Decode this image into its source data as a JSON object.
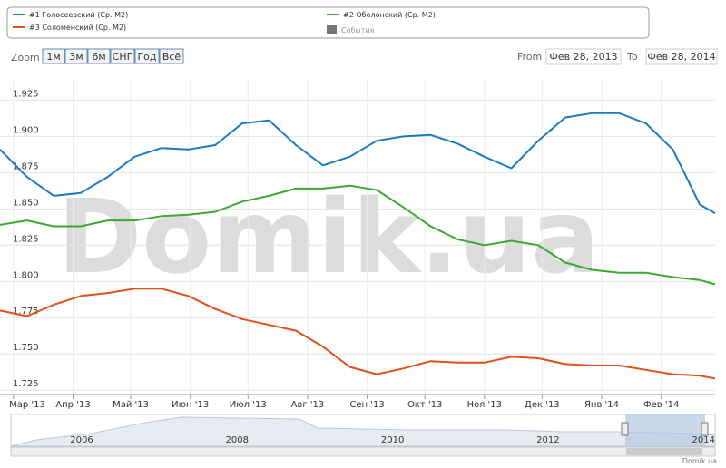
{
  "chart_data": {
    "type": "line",
    "x": [
      -7,
      7,
      21,
      35,
      49,
      63,
      77,
      91,
      105,
      119,
      133,
      147,
      161,
      175,
      189,
      203,
      217,
      231,
      245,
      259,
      273,
      287,
      301,
      315,
      329,
      343,
      357,
      365
    ],
    "series": [
      {
        "name": "#1 Голосеевский (Ср. М2)",
        "color": "#1a7bbf",
        "values": [
          1.891,
          1.872,
          1.859,
          1.861,
          1.872,
          1.886,
          1.892,
          1.891,
          1.894,
          1.909,
          1.911,
          1.894,
          1.88,
          1.886,
          1.897,
          1.9,
          1.901,
          1.895,
          1.886,
          1.878,
          1.897,
          1.913,
          1.916,
          1.916,
          1.909,
          1.891,
          1.853,
          1.847
        ]
      },
      {
        "name": "#2 Оболонский (Ср. М2)",
        "color": "#3aa832",
        "values": [
          1.839,
          1.842,
          1.838,
          1.838,
          1.842,
          1.842,
          1.845,
          1.846,
          1.848,
          1.855,
          1.859,
          1.864,
          1.864,
          1.866,
          1.863,
          1.851,
          1.838,
          1.829,
          1.825,
          1.828,
          1.825,
          1.813,
          1.808,
          1.806,
          1.806,
          1.803,
          1.801,
          1.798
        ]
      },
      {
        "name": "#3 Соломенский (Ср. М2)",
        "color": "#e0501a",
        "values": [
          1.78,
          1.776,
          1.784,
          1.79,
          1.792,
          1.795,
          1.795,
          1.79,
          1.781,
          1.774,
          1.77,
          1.766,
          1.755,
          1.741,
          1.736,
          1.74,
          1.745,
          1.744,
          1.744,
          1.748,
          1.747,
          1.743,
          1.742,
          1.742,
          1.739,
          1.736,
          1.735,
          1.733
        ]
      }
    ],
    "xlim": [
      -7,
      365
    ],
    "xticks": [
      {
        "value": 0,
        "label": "Мар '13"
      },
      {
        "value": 31,
        "label": "Апр '13"
      },
      {
        "value": 61,
        "label": "Май '13"
      },
      {
        "value": 92,
        "label": "Июн '13"
      },
      {
        "value": 122,
        "label": "Июл '13"
      },
      {
        "value": 153,
        "label": "Авг '13"
      },
      {
        "value": 184,
        "label": "Сен '13"
      },
      {
        "value": 214,
        "label": "Окт '13"
      },
      {
        "value": 245,
        "label": "Ноя '13"
      },
      {
        "value": 275,
        "label": "Дек '13"
      },
      {
        "value": 306,
        "label": "Янв '14"
      },
      {
        "value": 337,
        "label": "Фев '14"
      }
    ],
    "ylim": [
      1.722,
      1.939
    ],
    "yticks": [
      1.725,
      {
        "value": 1.75,
        "label": "1.750"
      },
      1.775,
      {
        "value": 1.8,
        "label": "1.800"
      },
      1.825,
      {
        "value": 1.85,
        "label": "1.850"
      },
      1.875,
      {
        "value": 1.9,
        "label": "1.900"
      },
      1.925
    ],
    "grid": true
  },
  "events_label": "События",
  "zoom": {
    "label": "Zoom",
    "buttons": [
      "1м",
      "3м",
      "6м",
      "СНГ",
      "Год",
      "Всё"
    ]
  },
  "range": {
    "from_label": "From",
    "from": "Фев 28, 2013",
    "to_label": "To",
    "to": "Фев 28, 2014"
  },
  "navigator": {
    "labels": [
      "2006",
      "2008",
      "2010",
      "2012",
      "2014"
    ]
  },
  "watermark": "Domik.ua",
  "footer": "Domik.ua"
}
